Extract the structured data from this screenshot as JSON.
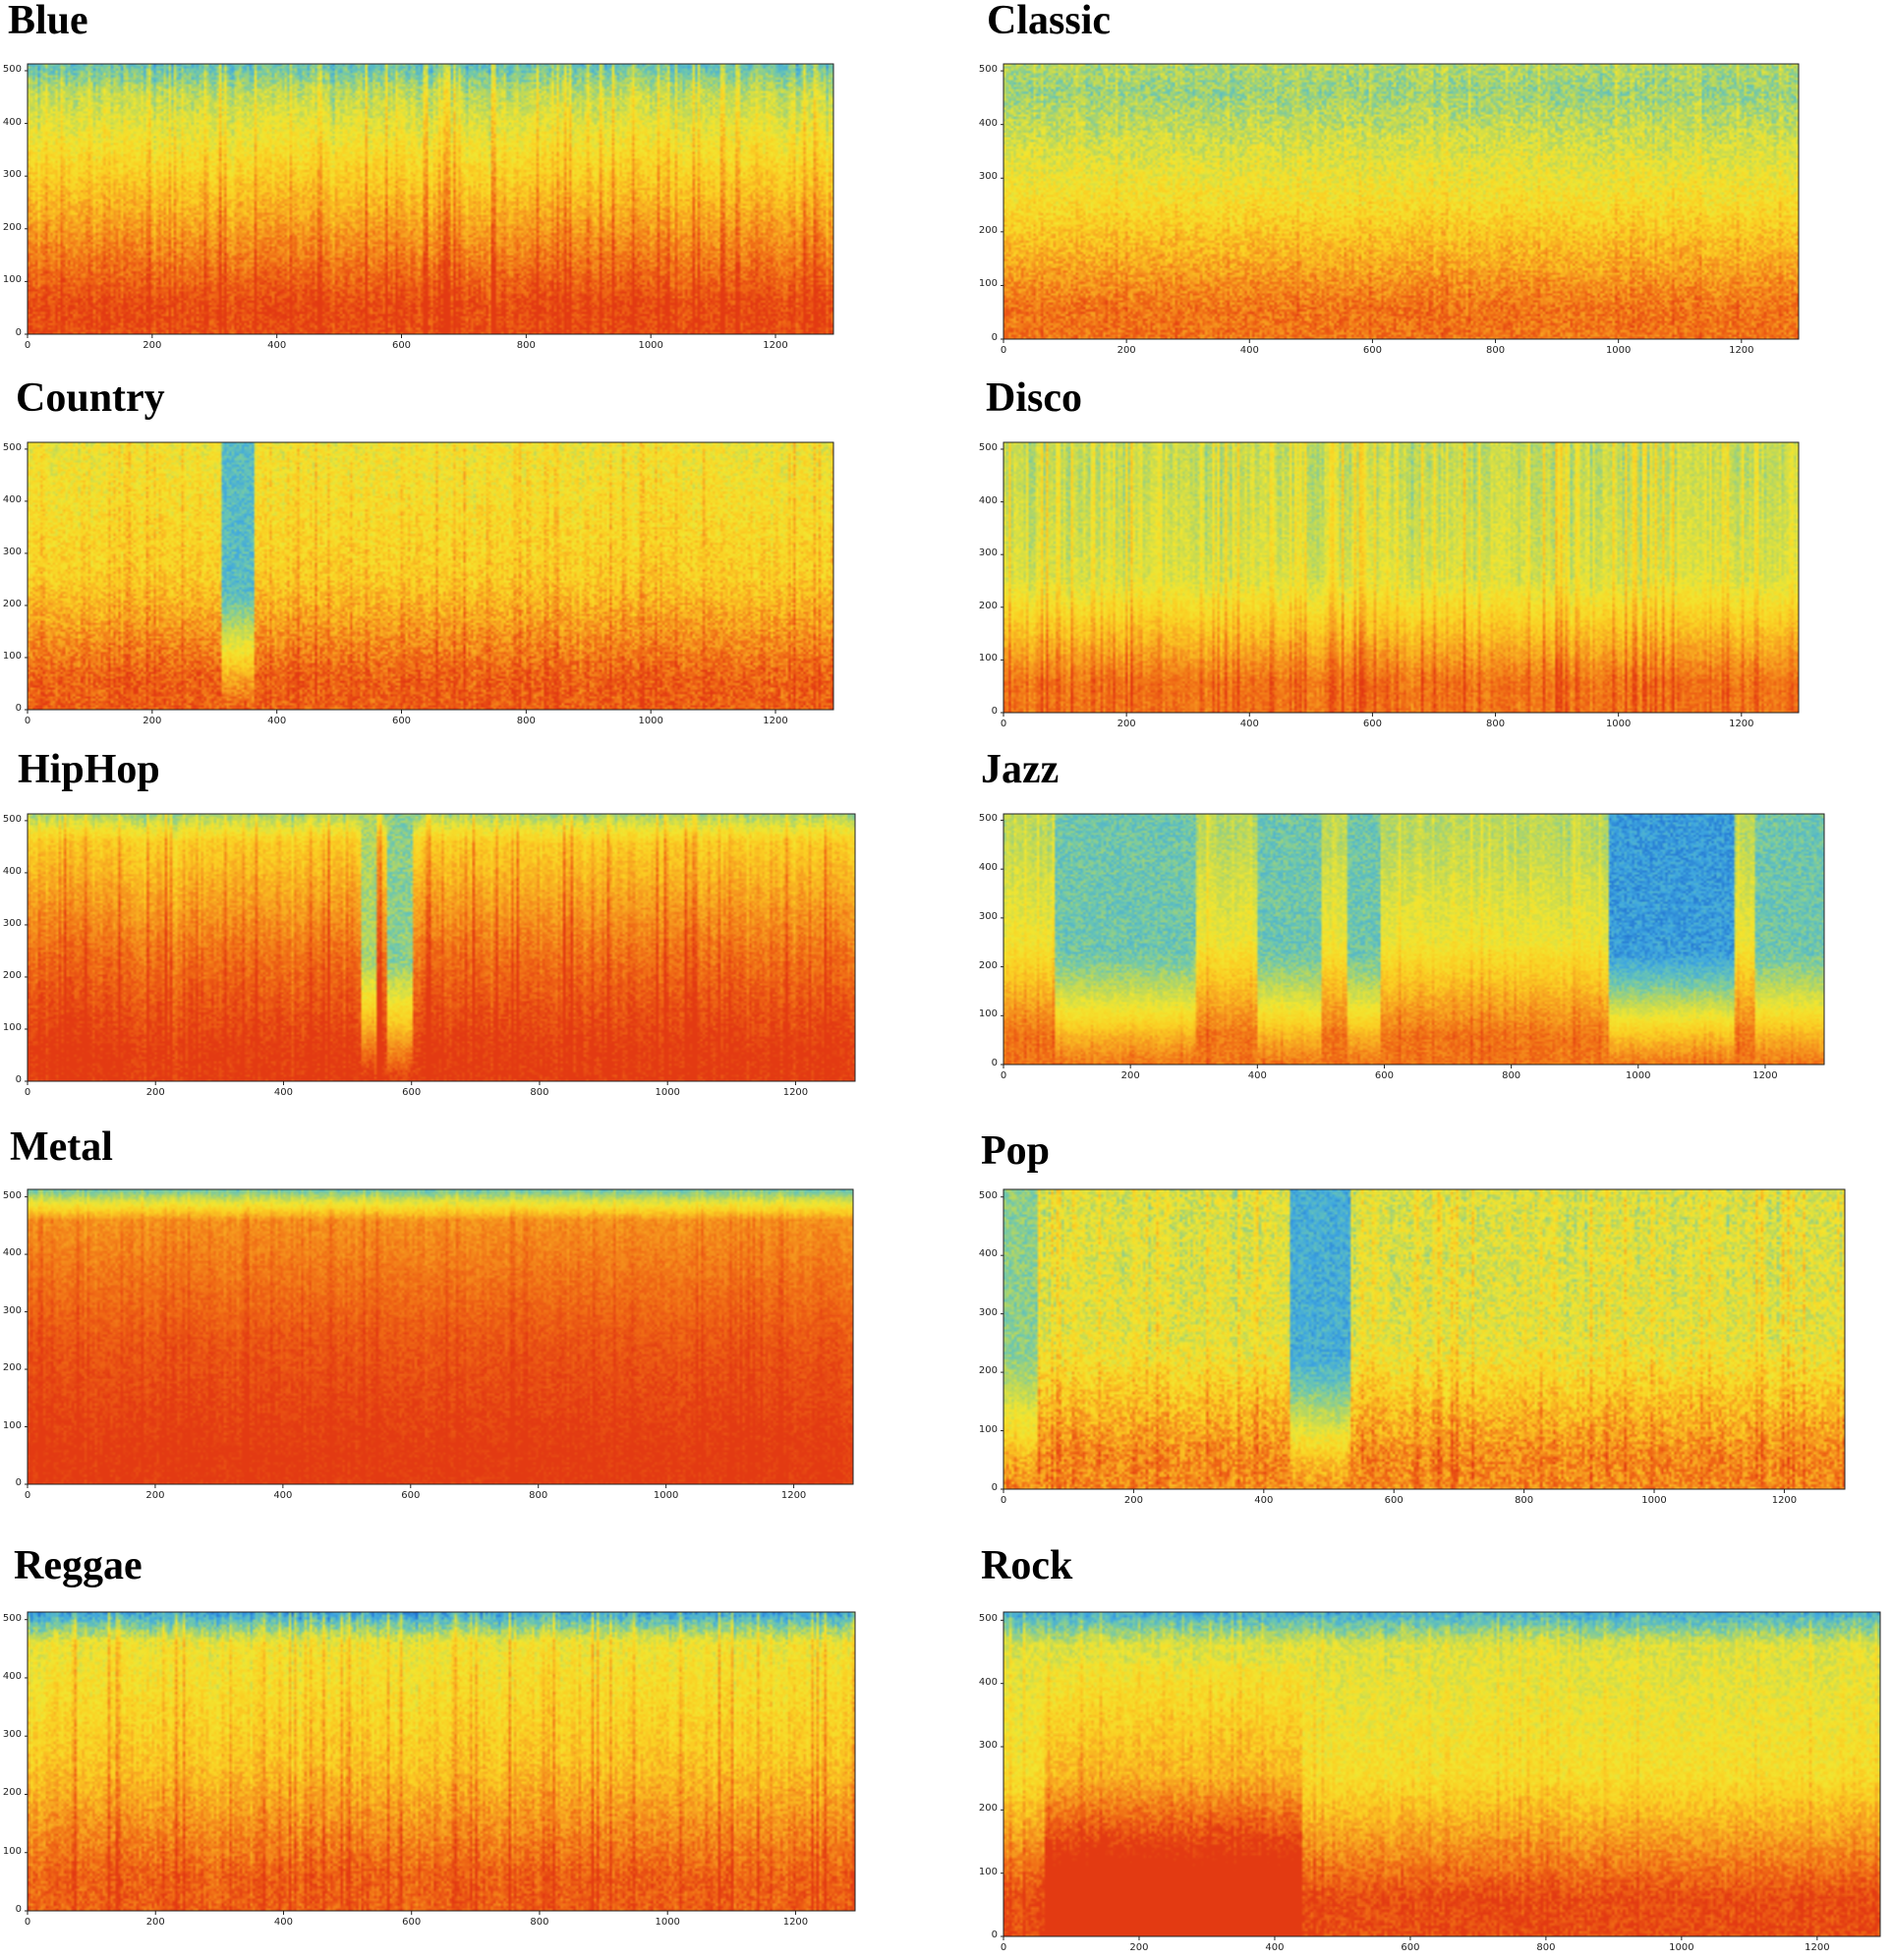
{
  "figure": {
    "colormap": [
      "#1f6fd1",
      "#3fa8e0",
      "#6cc7b0",
      "#bcd85a",
      "#f2e630",
      "#fbcf23",
      "#f7a020",
      "#f06a15",
      "#e33a12"
    ]
  },
  "chart_data": [
    {
      "type": "heatmap",
      "title": "Blue",
      "xlabel": "",
      "ylabel": "",
      "xlim": [
        0,
        1293
      ],
      "ylim": [
        0,
        513
      ],
      "xticks": [
        0,
        200,
        400,
        600,
        800,
        1000,
        1200
      ],
      "yticks": [
        0,
        100,
        200,
        300,
        400,
        500
      ],
      "low_band": 0.95,
      "mid": 0.68,
      "top": 0.38,
      "top_level": 0.22,
      "stripes": 0.3,
      "variation": 0.08,
      "cool_regions": []
    },
    {
      "type": "heatmap",
      "title": "Classic",
      "xlabel": "",
      "ylabel": "",
      "xlim": [
        0,
        1293
      ],
      "ylim": [
        0,
        513
      ],
      "xticks": [
        0,
        200,
        400,
        600,
        800,
        1000,
        1200
      ],
      "yticks": [
        0,
        100,
        200,
        300,
        400,
        500
      ],
      "low_band": 0.85,
      "mid": 0.55,
      "top": 0.32,
      "top_level": 0.36,
      "stripes": 0.12,
      "variation": 0.1,
      "cool_regions": []
    },
    {
      "type": "heatmap",
      "title": "Country",
      "xlabel": "",
      "ylabel": "",
      "xlim": [
        0,
        1293
      ],
      "ylim": [
        0,
        513
      ],
      "xticks": [
        0,
        200,
        400,
        600,
        800,
        1000,
        1200
      ],
      "yticks": [
        0,
        100,
        200,
        300,
        400,
        500
      ],
      "low_band": 0.9,
      "mid": 0.62,
      "top": 0.52,
      "top_level": 0.5,
      "stripes": 0.22,
      "variation": 0.1,
      "cool_regions": [
        [
          310,
          360,
          0.2
        ]
      ]
    },
    {
      "type": "heatmap",
      "title": "Disco",
      "xlabel": "",
      "ylabel": "",
      "xlim": [
        0,
        1293
      ],
      "ylim": [
        0,
        513
      ],
      "xticks": [
        0,
        200,
        400,
        600,
        800,
        1000,
        1200
      ],
      "yticks": [
        0,
        100,
        200,
        300,
        400,
        500
      ],
      "low_band": 0.85,
      "mid": 0.45,
      "top": 0.4,
      "top_level": 0.4,
      "stripes": 0.35,
      "variation": 0.06,
      "cool_regions": []
    },
    {
      "type": "heatmap",
      "title": "HipHop",
      "xlabel": "",
      "ylabel": "",
      "xlim": [
        0,
        1293
      ],
      "ylim": [
        0,
        513
      ],
      "xticks": [
        0,
        200,
        400,
        600,
        800,
        1000,
        1200
      ],
      "yticks": [
        0,
        100,
        200,
        300,
        400,
        500
      ],
      "low_band": 1.0,
      "mid": 0.85,
      "top": 0.62,
      "top_level": 0.35,
      "stripes": 0.3,
      "variation": 0.06,
      "cool_regions": [
        [
          520,
          545,
          0.35
        ],
        [
          560,
          600,
          0.3
        ]
      ]
    },
    {
      "type": "heatmap",
      "title": "Jazz",
      "xlabel": "",
      "ylabel": "",
      "xlim": [
        0,
        1293
      ],
      "ylim": [
        0,
        513
      ],
      "xticks": [
        0,
        200,
        400,
        600,
        800,
        1000,
        1200
      ],
      "yticks": [
        0,
        100,
        200,
        300,
        400,
        500
      ],
      "low_band": 0.85,
      "mid": 0.5,
      "top": 0.38,
      "top_level": 0.38,
      "stripes": 0.18,
      "variation": 0.06,
      "cool_regions": [
        [
          80,
          300,
          0.25
        ],
        [
          400,
          500,
          0.25
        ],
        [
          540,
          590,
          0.25
        ],
        [
          950,
          1150,
          0.1
        ],
        [
          1180,
          1293,
          0.25
        ]
      ]
    },
    {
      "type": "heatmap",
      "title": "Metal",
      "xlabel": "",
      "ylabel": "",
      "xlim": [
        0,
        1293
      ],
      "ylim": [
        0,
        513
      ],
      "xticks": [
        0,
        200,
        400,
        600,
        800,
        1000,
        1200
      ],
      "yticks": [
        0,
        100,
        200,
        300,
        400,
        500
      ],
      "low_band": 1.0,
      "mid": 0.92,
      "top": 0.78,
      "top_level": 0.25,
      "stripes": 0.12,
      "variation": 0.05,
      "cool_regions": []
    },
    {
      "type": "heatmap",
      "title": "Pop",
      "xlabel": "",
      "ylabel": "",
      "xlim": [
        0,
        1293
      ],
      "ylim": [
        0,
        513
      ],
      "xticks": [
        0,
        200,
        400,
        600,
        800,
        1000,
        1200
      ],
      "yticks": [
        0,
        100,
        200,
        300,
        400,
        500
      ],
      "low_band": 0.8,
      "mid": 0.48,
      "top": 0.45,
      "top_level": 0.45,
      "stripes": 0.25,
      "variation": 0.12,
      "cool_regions": [
        [
          440,
          530,
          0.15
        ],
        [
          0,
          50,
          0.3
        ]
      ]
    },
    {
      "type": "heatmap",
      "title": "Reggae",
      "xlabel": "",
      "ylabel": "",
      "xlim": [
        0,
        1293
      ],
      "ylim": [
        0,
        513
      ],
      "xticks": [
        0,
        200,
        400,
        600,
        800,
        1000,
        1200
      ],
      "yticks": [
        0,
        100,
        200,
        300,
        400,
        500
      ],
      "low_band": 0.9,
      "mid": 0.65,
      "top": 0.5,
      "top_level": 0.12,
      "stripes": 0.3,
      "variation": 0.08,
      "cool_regions": []
    },
    {
      "type": "heatmap",
      "title": "Rock",
      "xlabel": "",
      "ylabel": "",
      "xlim": [
        0,
        1293
      ],
      "ylim": [
        0,
        513
      ],
      "xticks": [
        0,
        200,
        400,
        600,
        800,
        1000,
        1200
      ],
      "yticks": [
        0,
        100,
        200,
        300,
        400,
        500
      ],
      "low_band": 0.95,
      "mid": 0.55,
      "top": 0.45,
      "top_level": 0.15,
      "stripes": 0.15,
      "variation": 0.08,
      "hot_regions": [
        [
          60,
          440,
          0.3
        ]
      ],
      "cool_regions": []
    }
  ]
}
